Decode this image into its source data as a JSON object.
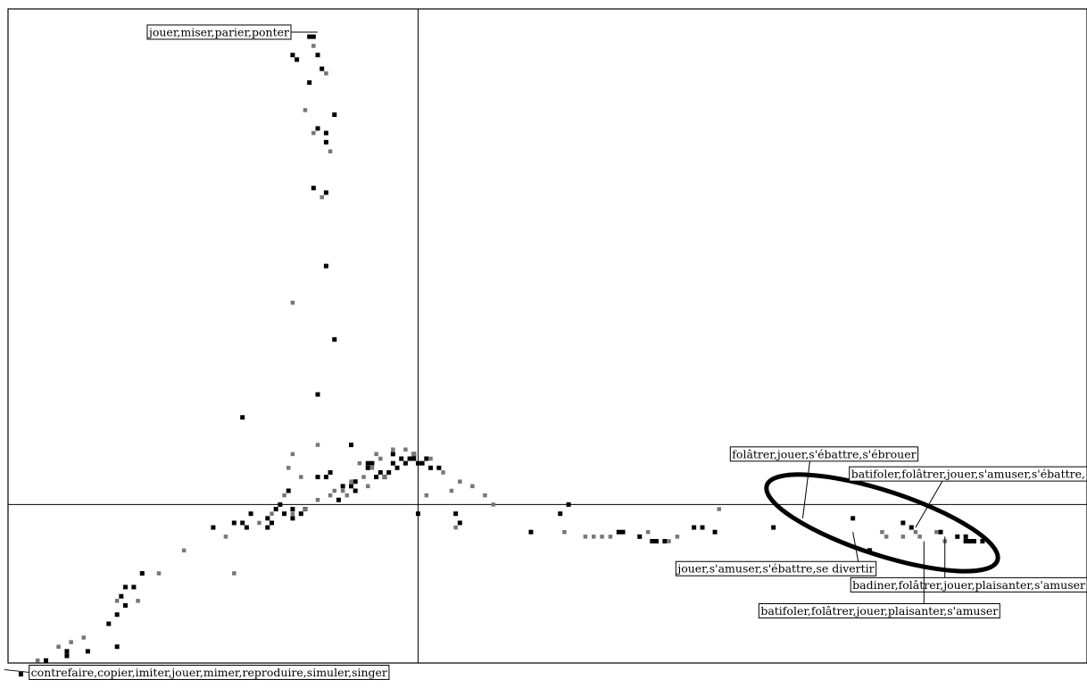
{
  "chart_data": {
    "type": "scatter",
    "title": "",
    "xlabel": "",
    "ylabel": "",
    "grid": false,
    "xlim": [
      -1,
      1.6
    ],
    "ylim": [
      -0.4,
      1.1
    ],
    "colors": {
      "black": "#000000",
      "gray": "#777777"
    },
    "series": [
      {
        "color": "black",
        "points": [
          [
            -0.95,
            -0.37
          ],
          [
            -0.89,
            -0.34
          ],
          [
            -0.84,
            -0.33
          ],
          [
            -0.84,
            -0.32
          ],
          [
            -0.79,
            -0.32
          ],
          [
            -0.72,
            -0.31
          ],
          [
            -0.74,
            -0.26
          ],
          [
            -0.72,
            -0.24
          ],
          [
            -0.71,
            -0.2
          ],
          [
            -0.7,
            -0.22
          ],
          [
            -0.7,
            -0.18
          ],
          [
            -0.68,
            -0.18
          ],
          [
            -0.66,
            -0.15
          ],
          [
            -0.49,
            -0.05
          ],
          [
            -0.44,
            -0.04
          ],
          [
            -0.42,
            -0.04
          ],
          [
            -0.41,
            -0.05
          ],
          [
            -0.4,
            -0.02
          ],
          [
            -0.36,
            -0.03
          ],
          [
            -0.36,
            -0.05
          ],
          [
            -0.35,
            -0.04
          ],
          [
            -0.34,
            -0.01
          ],
          [
            -0.32,
            -0.02
          ],
          [
            -0.33,
            0.0
          ],
          [
            -0.3,
            -0.01
          ],
          [
            -0.3,
            -0.03
          ],
          [
            -0.31,
            0.03
          ],
          [
            -0.28,
            -0.02
          ],
          [
            -0.27,
            -0.01
          ],
          [
            -0.24,
            0.06
          ],
          [
            -0.22,
            0.06
          ],
          [
            -0.21,
            0.07
          ],
          [
            -0.19,
            0.01
          ],
          [
            -0.16,
            0.13
          ],
          [
            -0.18,
            0.04
          ],
          [
            -0.16,
            0.04
          ],
          [
            -0.15,
            0.05
          ],
          [
            -0.15,
            0.03
          ],
          [
            -0.12,
            0.09
          ],
          [
            -0.12,
            0.08
          ],
          [
            -0.11,
            0.09
          ],
          [
            -0.1,
            0.06
          ],
          [
            -0.09,
            0.07
          ],
          [
            -0.08,
            0.06
          ],
          [
            -0.07,
            0.07
          ],
          [
            -0.06,
            0.11
          ],
          [
            -0.06,
            0.09
          ],
          [
            -0.05,
            0.08
          ],
          [
            -0.04,
            0.1
          ],
          [
            -0.03,
            0.09
          ],
          [
            -0.02,
            0.1
          ],
          [
            -0.01,
            0.11
          ],
          [
            -0.01,
            0.1
          ],
          [
            0.0,
            0.09
          ],
          [
            0.02,
            0.1
          ],
          [
            0.01,
            0.09
          ],
          [
            0.03,
            0.08
          ],
          [
            0.05,
            0.08
          ],
          [
            0.0,
            -0.02
          ],
          [
            0.09,
            -0.02
          ],
          [
            0.1,
            -0.04
          ],
          [
            0.27,
            -0.06
          ],
          [
            0.36,
            0.0
          ],
          [
            0.34,
            -0.02
          ],
          [
            0.48,
            -0.06
          ],
          [
            0.49,
            -0.06
          ],
          [
            0.53,
            -0.07
          ],
          [
            0.56,
            -0.08
          ],
          [
            0.57,
            -0.08
          ],
          [
            0.59,
            -0.08
          ],
          [
            0.66,
            -0.05
          ],
          [
            0.68,
            -0.05
          ],
          [
            0.71,
            -0.06
          ],
          [
            0.85,
            -0.05
          ],
          [
            1.04,
            -0.03
          ],
          [
            1.08,
            -0.1
          ],
          [
            1.16,
            -0.04
          ],
          [
            1.18,
            -0.05
          ],
          [
            1.25,
            -0.06
          ],
          [
            1.29,
            -0.07
          ],
          [
            1.31,
            -0.07
          ],
          [
            1.31,
            -0.08
          ],
          [
            1.32,
            -0.08
          ],
          [
            1.33,
            -0.08
          ],
          [
            1.35,
            -0.08
          ],
          [
            -0.42,
            0.19
          ],
          [
            -0.24,
            0.24
          ],
          [
            -0.2,
            0.36
          ],
          [
            -0.22,
            0.52
          ],
          [
            -0.22,
            0.68
          ],
          [
            -0.22,
            0.79
          ],
          [
            -0.22,
            0.81
          ],
          [
            -0.25,
            0.69
          ],
          [
            -0.24,
            0.82
          ],
          [
            -0.26,
            0.92
          ],
          [
            -0.2,
            0.85
          ],
          [
            -0.24,
            0.98
          ],
          [
            -0.23,
            0.95
          ],
          [
            -0.3,
            0.98
          ],
          [
            -0.29,
            0.97
          ],
          [
            -0.26,
            1.02
          ],
          [
            -0.25,
            1.02
          ]
        ]
      },
      {
        "color": "gray",
        "points": [
          [
            -0.91,
            -0.34
          ],
          [
            -0.88,
            -0.36
          ],
          [
            -0.86,
            -0.31
          ],
          [
            -0.83,
            -0.3
          ],
          [
            -0.8,
            -0.29
          ],
          [
            -0.72,
            -0.21
          ],
          [
            -0.67,
            -0.21
          ],
          [
            -0.62,
            -0.15
          ],
          [
            -0.56,
            -0.1
          ],
          [
            -0.46,
            -0.07
          ],
          [
            -0.38,
            -0.04
          ],
          [
            -0.35,
            -0.02
          ],
          [
            -0.3,
            -0.02
          ],
          [
            -0.27,
            -0.01
          ],
          [
            -0.24,
            0.01
          ],
          [
            -0.21,
            0.02
          ],
          [
            -0.18,
            0.03
          ],
          [
            -0.16,
            0.05
          ],
          [
            -0.13,
            0.06
          ],
          [
            -0.11,
            0.08
          ],
          [
            -0.09,
            0.1
          ],
          [
            -0.06,
            0.12
          ],
          [
            -0.03,
            0.12
          ],
          [
            -0.01,
            0.11
          ],
          [
            0.03,
            0.1
          ],
          [
            0.06,
            0.07
          ],
          [
            0.08,
            0.03
          ],
          [
            0.1,
            0.05
          ],
          [
            0.13,
            0.04
          ],
          [
            0.16,
            0.02
          ],
          [
            0.18,
            0.0
          ],
          [
            0.02,
            0.02
          ],
          [
            -0.08,
            0.06
          ],
          [
            -0.12,
            0.04
          ],
          [
            -0.2,
            0.03
          ],
          [
            -0.14,
            0.09
          ],
          [
            -0.1,
            0.11
          ],
          [
            -0.24,
            0.13
          ],
          [
            -0.28,
            0.06
          ],
          [
            -0.31,
            0.08
          ],
          [
            -0.32,
            0.02
          ],
          [
            -0.17,
            0.02
          ],
          [
            -0.44,
            -0.15
          ],
          [
            0.09,
            -0.05
          ],
          [
            0.35,
            -0.06
          ],
          [
            0.4,
            -0.07
          ],
          [
            0.42,
            -0.07
          ],
          [
            0.44,
            -0.07
          ],
          [
            0.46,
            -0.07
          ],
          [
            0.55,
            -0.06
          ],
          [
            0.6,
            -0.08
          ],
          [
            0.62,
            -0.07
          ],
          [
            0.72,
            -0.01
          ],
          [
            1.11,
            -0.06
          ],
          [
            1.12,
            -0.07
          ],
          [
            1.16,
            -0.07
          ],
          [
            1.19,
            -0.06
          ],
          [
            1.2,
            -0.07
          ],
          [
            1.24,
            -0.06
          ],
          [
            1.26,
            -0.08
          ],
          [
            -0.3,
            0.11
          ],
          [
            -0.25,
            1.0
          ],
          [
            -0.22,
            0.94
          ],
          [
            -0.27,
            0.86
          ],
          [
            -0.25,
            0.81
          ],
          [
            -0.21,
            0.77
          ],
          [
            -0.23,
            0.67
          ],
          [
            -0.3,
            0.44
          ]
        ]
      }
    ],
    "annotations": [
      {
        "text": "jouer,miser,parier,ponter",
        "x": -0.24,
        "y": 1.03,
        "anchor": "left-of-point"
      },
      {
        "text": "contrefaire,copier,imiter,jouer,mimer,reproduire,simuler,singer",
        "x": -0.99,
        "y": -0.36,
        "anchor": "right-of-point"
      },
      {
        "text": "folâtrer,jouer,s'ébattre,s'ébrouer",
        "x": 0.92,
        "y": -0.03,
        "anchor": "above"
      },
      {
        "text": "batifoler,folâtrer,jouer,s'amuser,s'ébattre,",
        "x": 1.19,
        "y": -0.05,
        "anchor": "above-right"
      },
      {
        "text": "jouer,s'amuser,s'ébattre,se divertir",
        "x": 1.04,
        "y": -0.06,
        "anchor": "below-left"
      },
      {
        "text": "badiner,folâtrer,jouer,plaisanter,s'amuser",
        "x": 1.26,
        "y": -0.07,
        "anchor": "below-right"
      },
      {
        "text": "batifoler,folâtrer,jouer,plaisanter,s'amuser",
        "x": 1.21,
        "y": -0.08,
        "anchor": "below"
      }
    ],
    "highlight_ellipse": {
      "cx": 1.11,
      "cy": -0.04,
      "rx": 0.29,
      "ry": 0.07,
      "rotation_deg": 18
    }
  }
}
